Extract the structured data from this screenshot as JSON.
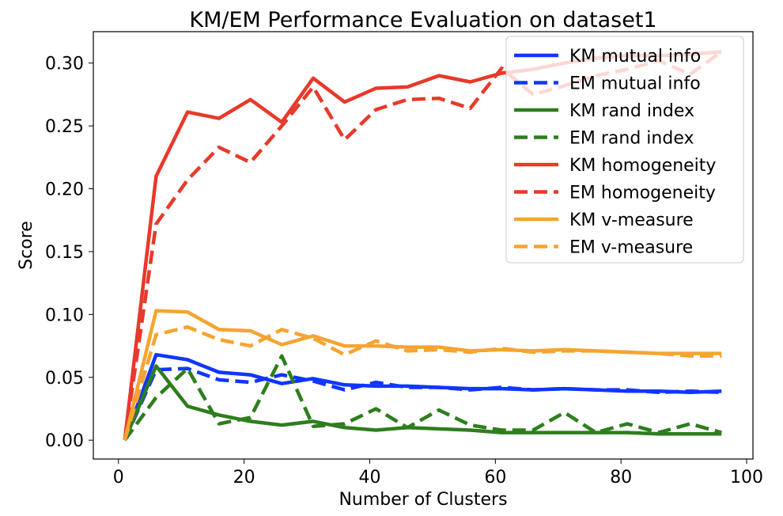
{
  "chart_data": {
    "type": "line",
    "title": "KM/EM Performance Evaluation on dataset1",
    "xlabel": "Number of Clusters",
    "ylabel": "Score",
    "xlim": [
      -4,
      101
    ],
    "ylim": [
      -0.015,
      0.325
    ],
    "xticks": [
      "0",
      "20",
      "40",
      "60",
      "80",
      "100"
    ],
    "yticks": [
      "0.00",
      "0.05",
      "0.10",
      "0.15",
      "0.20",
      "0.25",
      "0.30"
    ],
    "grid": false,
    "legend_position": "top-right",
    "x": [
      1,
      6,
      11,
      16,
      21,
      26,
      31,
      36,
      41,
      46,
      51,
      56,
      61,
      66,
      71,
      76,
      81,
      86,
      91,
      96
    ],
    "series": [
      {
        "name": "KM mutual info",
        "color": "#1036ff",
        "style": "solid",
        "values": [
          0.0,
          0.068,
          0.064,
          0.054,
          0.052,
          0.045,
          0.049,
          0.044,
          0.043,
          0.043,
          0.042,
          0.041,
          0.041,
          0.04,
          0.041,
          0.04,
          0.039,
          0.039,
          0.038,
          0.039
        ]
      },
      {
        "name": "EM mutual info",
        "color": "#1036ff",
        "style": "dashed",
        "values": [
          0.0,
          0.056,
          0.057,
          0.048,
          0.046,
          0.052,
          0.047,
          0.04,
          0.046,
          0.042,
          0.042,
          0.04,
          0.042,
          0.04,
          0.041,
          0.04,
          0.04,
          0.038,
          0.039,
          0.038
        ]
      },
      {
        "name": "KM rand index",
        "color": "#2e7d1e",
        "style": "solid",
        "values": [
          0.0,
          0.059,
          0.027,
          0.02,
          0.015,
          0.012,
          0.015,
          0.01,
          0.008,
          0.01,
          0.009,
          0.008,
          0.006,
          0.006,
          0.006,
          0.006,
          0.006,
          0.005,
          0.005,
          0.005
        ]
      },
      {
        "name": "EM rand index",
        "color": "#2e7d1e",
        "style": "dashed",
        "values": [
          0.0,
          0.034,
          0.057,
          0.013,
          0.018,
          0.067,
          0.011,
          0.013,
          0.025,
          0.01,
          0.024,
          0.012,
          0.008,
          0.008,
          0.022,
          0.006,
          0.013,
          0.006,
          0.013,
          0.006
        ]
      },
      {
        "name": "KM homogeneity",
        "color": "#e8392a",
        "style": "solid",
        "values": [
          0.0,
          0.21,
          0.261,
          0.256,
          0.271,
          0.253,
          0.288,
          0.269,
          0.28,
          0.281,
          0.29,
          0.285,
          0.292,
          0.295,
          0.3,
          0.304,
          0.306,
          0.306,
          0.307,
          0.309
        ]
      },
      {
        "name": "EM homogeneity",
        "color": "#e8392a",
        "style": "dashed",
        "values": [
          0.0,
          0.172,
          0.207,
          0.233,
          0.221,
          0.25,
          0.281,
          0.239,
          0.263,
          0.271,
          0.272,
          0.264,
          0.296,
          0.275,
          0.282,
          0.29,
          0.295,
          0.302,
          0.291,
          0.309
        ]
      },
      {
        "name": "KM v-measure",
        "color": "#f5a431",
        "style": "solid",
        "values": [
          0.0,
          0.103,
          0.102,
          0.088,
          0.087,
          0.076,
          0.083,
          0.075,
          0.075,
          0.074,
          0.074,
          0.071,
          0.072,
          0.071,
          0.072,
          0.071,
          0.07,
          0.069,
          0.069,
          0.069
        ]
      },
      {
        "name": "EM v-measure",
        "color": "#f5a431",
        "style": "dashed",
        "values": [
          0.0,
          0.084,
          0.09,
          0.08,
          0.075,
          0.088,
          0.081,
          0.068,
          0.079,
          0.071,
          0.072,
          0.07,
          0.073,
          0.07,
          0.071,
          0.071,
          0.07,
          0.069,
          0.067,
          0.067
        ]
      }
    ]
  }
}
